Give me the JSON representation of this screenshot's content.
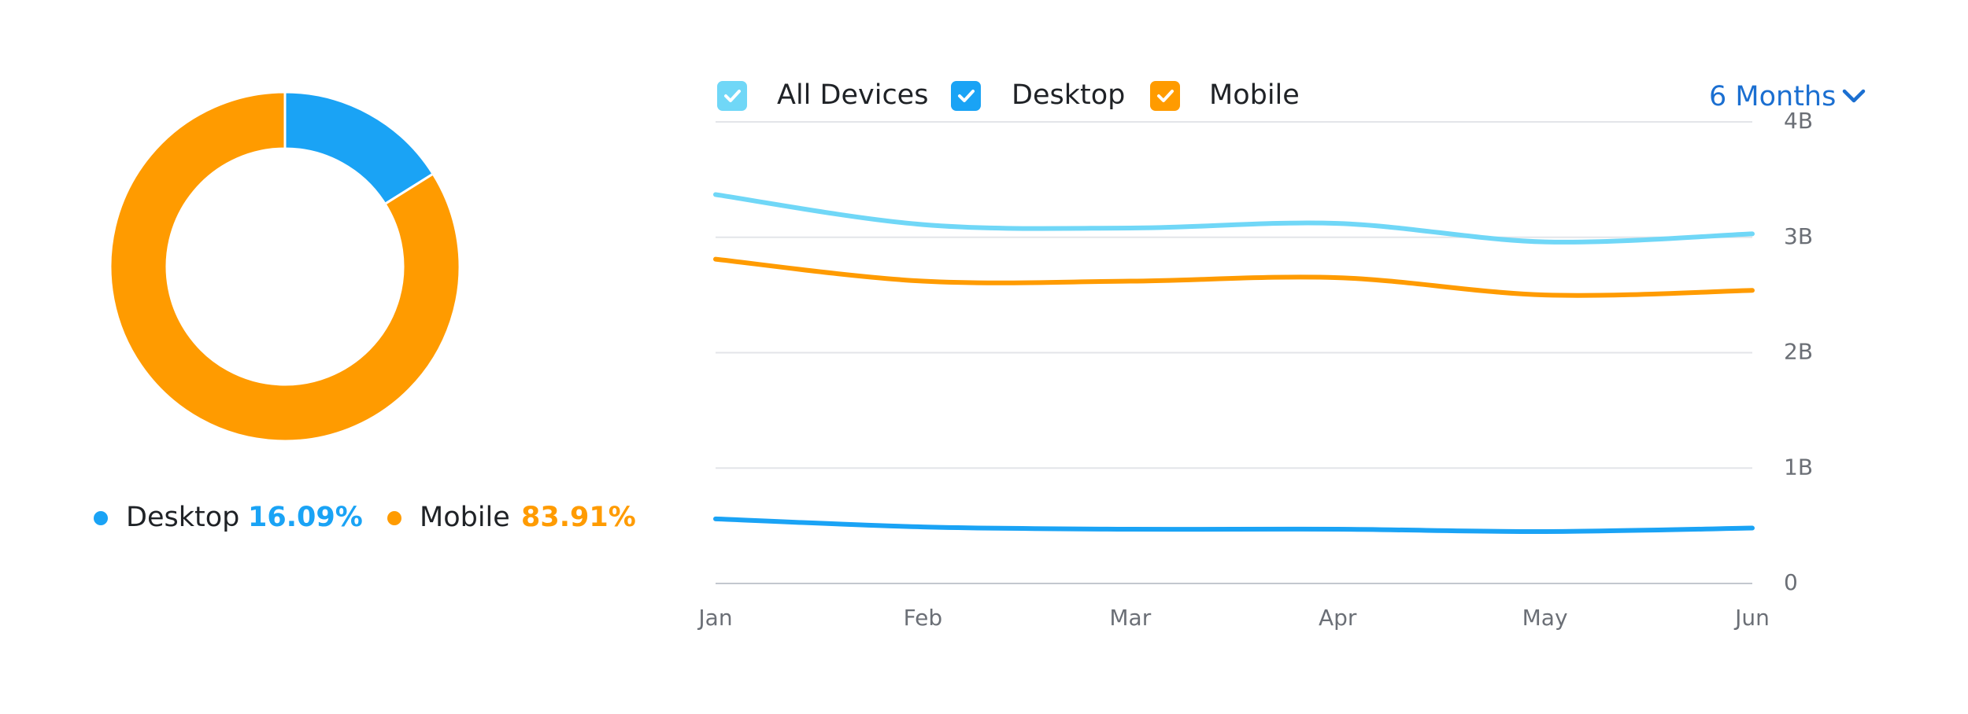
{
  "chart_data": [
    {
      "type": "pie",
      "categories": [
        "Desktop",
        "Mobile"
      ],
      "values": [
        16.09,
        83.91
      ],
      "value_labels": [
        "16.09%",
        "83.91%"
      ],
      "colors": [
        "#1aa3f5",
        "#ff9b00"
      ],
      "donut": true
    },
    {
      "type": "line",
      "categories": [
        "Jan",
        "Feb",
        "Mar",
        "Apr",
        "May",
        "Jun"
      ],
      "series": [
        {
          "name": "All Devices",
          "color": "#70d7f7",
          "values": [
            3370000000,
            3110000000,
            3080000000,
            3120000000,
            2960000000,
            3030000000
          ]
        },
        {
          "name": "Desktop",
          "color": "#1aa3f5",
          "values": [
            560000000,
            490000000,
            470000000,
            470000000,
            450000000,
            480000000
          ]
        },
        {
          "name": "Mobile",
          "color": "#ff9b00",
          "values": [
            2810000000,
            2620000000,
            2620000000,
            2650000000,
            2500000000,
            2540000000
          ]
        }
      ],
      "ylim": [
        0,
        4000000000
      ],
      "yticks": [
        0,
        {
          "value": 1000000000,
          "label": "1B"
        },
        {
          "value": 2000000000,
          "label": "2B"
        },
        {
          "value": 3000000000,
          "label": "3B"
        },
        {
          "value": 4000000000,
          "label": "4B"
        }
      ],
      "grid": true,
      "range_selector": "6 Months"
    }
  ]
}
